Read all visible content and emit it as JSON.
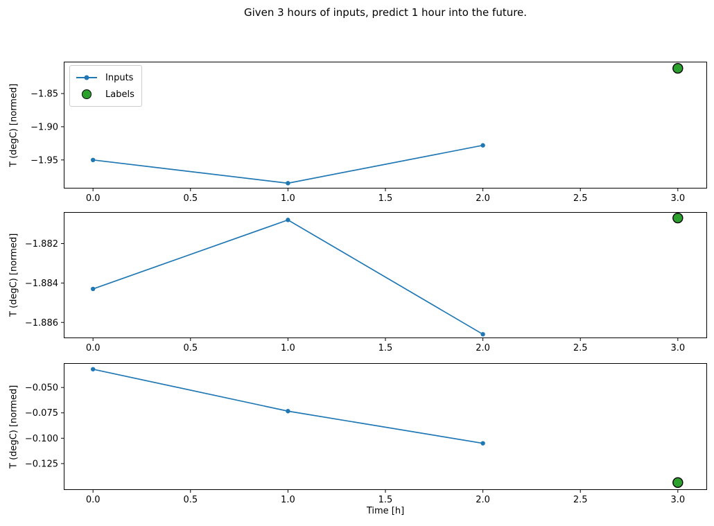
{
  "title": "Given 3 hours of inputs, predict 1 hour into the future.",
  "xlabel": "Time [h]",
  "legend": {
    "items": [
      "Inputs",
      "Labels"
    ]
  },
  "colors": {
    "inputs_line": "#1f77b4",
    "labels_fill": "#2ca02c",
    "labels_edge": "#000000",
    "axis": "#000000",
    "legend_border": "#cccccc"
  },
  "chart_data": [
    {
      "type": "line",
      "ylabel": "T (degC) [normed]",
      "xlim": [
        -0.15,
        3.15
      ],
      "ylim": [
        -1.993,
        -1.802
      ],
      "xtick_values": [
        0,
        0.5,
        1,
        1.5,
        2,
        2.5,
        3
      ],
      "xtick_labels": [
        "0.0",
        "0.5",
        "1.0",
        "1.5",
        "2.0",
        "2.5",
        "3.0"
      ],
      "ytick_values": [
        -1.85,
        -1.9,
        -1.95
      ],
      "ytick_labels": [
        "−1.85",
        "−1.90",
        "−1.95"
      ],
      "series": [
        {
          "name": "Inputs",
          "x": [
            0,
            1,
            2
          ],
          "y": [
            -1.95,
            -1.985,
            -1.928
          ]
        }
      ],
      "label_point": {
        "name": "Labels",
        "x": 3,
        "y": -1.812
      }
    },
    {
      "type": "line",
      "ylabel": "T (degC) [normed]",
      "xlim": [
        -0.15,
        3.15
      ],
      "ylim": [
        -1.8868,
        -1.8804
      ],
      "xtick_values": [
        0,
        0.5,
        1,
        1.5,
        2,
        2.5,
        3
      ],
      "xtick_labels": [
        "0.0",
        "0.5",
        "1.0",
        "1.5",
        "2.0",
        "2.5",
        "3.0"
      ],
      "ytick_values": [
        -1.882,
        -1.884,
        -1.886
      ],
      "ytick_labels": [
        "−1.882",
        "−1.884",
        "−1.886"
      ],
      "series": [
        {
          "name": "Inputs",
          "x": [
            0,
            1,
            2
          ],
          "y": [
            -1.8843,
            -1.8808,
            -1.8866
          ]
        }
      ],
      "label_point": {
        "name": "Labels",
        "x": 3,
        "y": -1.8807
      }
    },
    {
      "type": "line",
      "ylabel": "T (degC) [normed]",
      "xlim": [
        -0.15,
        3.15
      ],
      "ylim": [
        -0.151,
        -0.026
      ],
      "xtick_values": [
        0,
        0.5,
        1,
        1.5,
        2,
        2.5,
        3
      ],
      "xtick_labels": [
        "0.0",
        "0.5",
        "1.0",
        "1.5",
        "2.0",
        "2.5",
        "3.0"
      ],
      "ytick_values": [
        -0.05,
        -0.075,
        -0.1,
        -0.125
      ],
      "ytick_labels": [
        "−0.050",
        "−0.075",
        "−0.100",
        "−0.125"
      ],
      "series": [
        {
          "name": "Inputs",
          "x": [
            0,
            1,
            2
          ],
          "y": [
            -0.032,
            -0.0733,
            -0.105
          ]
        }
      ],
      "label_point": {
        "name": "Labels",
        "x": 3,
        "y": -0.1437
      }
    }
  ]
}
